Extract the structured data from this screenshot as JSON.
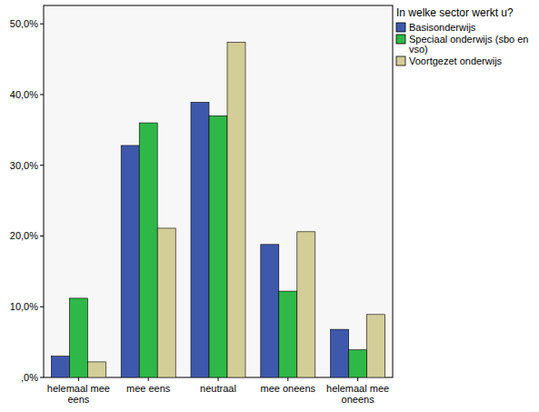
{
  "chart_data": {
    "type": "bar",
    "legend_title": "In welke sector werkt u?",
    "categories": [
      "helemaal mee eens",
      "mee eens",
      "neutraal",
      "mee oneens",
      "helemaal mee oneens"
    ],
    "series": [
      {
        "name": "Basisonderwijs",
        "color": "#3e58ac",
        "values": [
          3.0,
          32.8,
          38.9,
          18.8,
          6.8
        ]
      },
      {
        "name": "Speciaal onderwijs (sbo en vso)",
        "color": "#2eb848",
        "values": [
          11.2,
          36.0,
          37.0,
          12.2,
          3.9
        ]
      },
      {
        "name": "Voortgezet onderwijs",
        "color": "#d3ce97",
        "values": [
          2.2,
          21.1,
          47.4,
          20.6,
          8.9
        ]
      }
    ],
    "ylim": [
      0,
      52.6
    ],
    "yticks": [
      {
        "value": 0,
        "label": ",0%"
      },
      {
        "value": 10,
        "label": "10,0%"
      },
      {
        "value": 20,
        "label": "20,0%"
      },
      {
        "value": 30,
        "label": "30,0%"
      },
      {
        "value": 40,
        "label": "40,0%"
      },
      {
        "value": 50,
        "label": "50,0%"
      }
    ],
    "grid": false,
    "legend": "right"
  }
}
